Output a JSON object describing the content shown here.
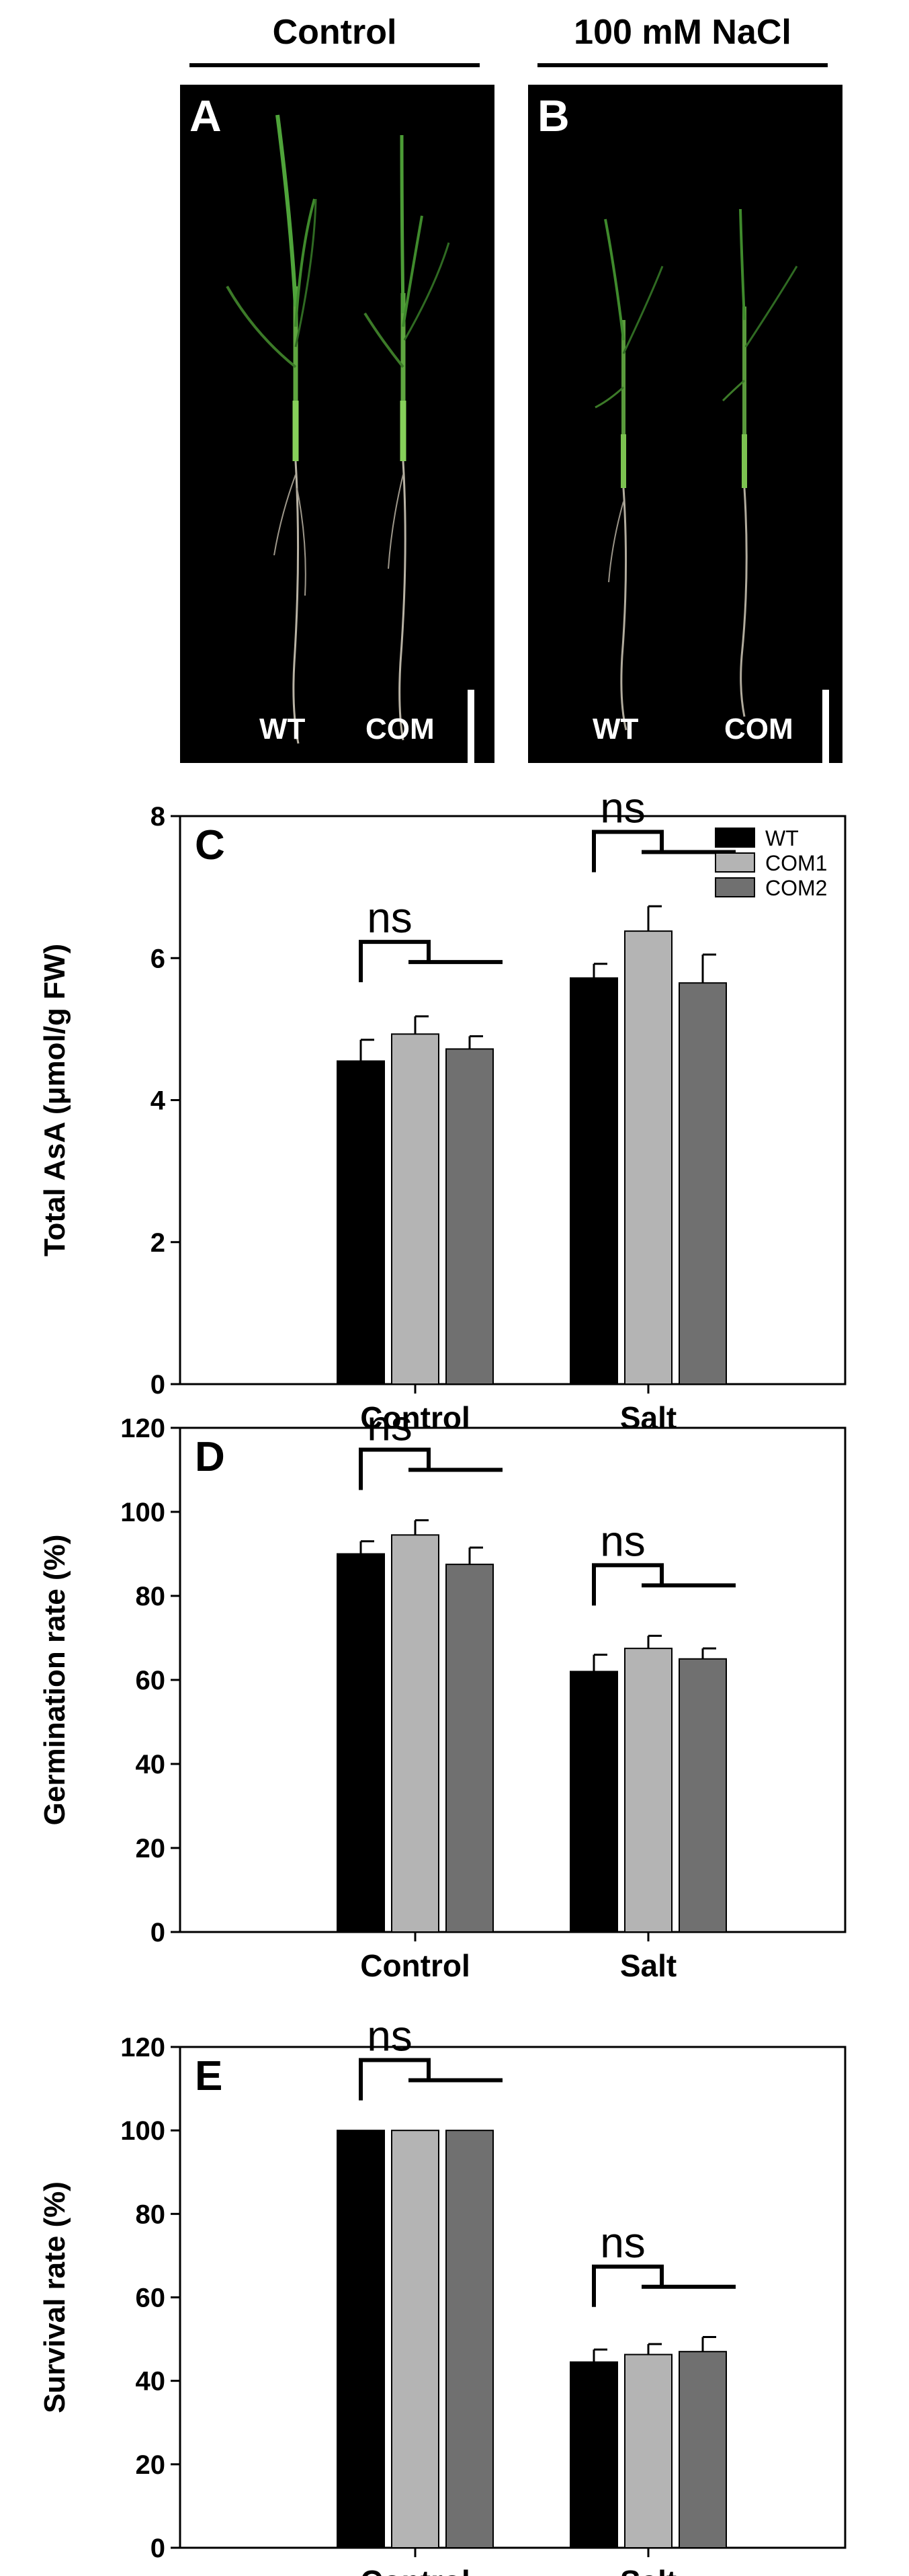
{
  "header": {
    "control_label": "Control",
    "salt_label": "100 mM NaCl"
  },
  "photos": [
    {
      "panel": "A",
      "genotypes": [
        "WT",
        "COM"
      ]
    },
    {
      "panel": "B",
      "genotypes": [
        "WT",
        "COM"
      ]
    }
  ],
  "colors": {
    "WT": "#000000",
    "COM1": "#b4b4b4",
    "COM2": "#707070"
  },
  "chart_data": [
    {
      "type": "bar",
      "panel": "C",
      "categories": [
        "Control",
        "Salt"
      ],
      "series": [
        {
          "name": "WT",
          "values": [
            4.55,
            5.72
          ],
          "errors": [
            0.3,
            0.2
          ]
        },
        {
          "name": "COM1",
          "values": [
            4.93,
            6.38
          ],
          "errors": [
            0.25,
            0.35
          ]
        },
        {
          "name": "COM2",
          "values": [
            4.72,
            5.65
          ],
          "errors": [
            0.18,
            0.4
          ]
        }
      ],
      "annotations": [
        "ns",
        "ns"
      ],
      "ylabel": "Total AsA (μmol/g FW)",
      "xlabel": "",
      "ylim": [
        0,
        8
      ],
      "yticks": [
        0,
        2,
        4,
        6,
        8
      ],
      "legend": "top-right",
      "grid": false
    },
    {
      "type": "bar",
      "panel": "D",
      "categories": [
        "Control",
        "Salt"
      ],
      "series": [
        {
          "name": "WT",
          "values": [
            90,
            62
          ],
          "errors": [
            3,
            4
          ]
        },
        {
          "name": "COM1",
          "values": [
            94.5,
            67.5
          ],
          "errors": [
            3.5,
            3
          ]
        },
        {
          "name": "COM2",
          "values": [
            87.5,
            65
          ],
          "errors": [
            4,
            2.5
          ]
        }
      ],
      "annotations": [
        "ns",
        "ns"
      ],
      "ylabel": "Germination rate (%)",
      "xlabel": "",
      "ylim": [
        0,
        120
      ],
      "yticks": [
        0,
        20,
        40,
        60,
        80,
        100,
        120
      ],
      "grid": false
    },
    {
      "type": "bar",
      "panel": "E",
      "categories": [
        "Control",
        "Salt"
      ],
      "series": [
        {
          "name": "WT",
          "values": [
            100,
            44.5
          ],
          "errors": [
            0,
            3
          ]
        },
        {
          "name": "COM1",
          "values": [
            100,
            46.3
          ],
          "errors": [
            0,
            2.5
          ]
        },
        {
          "name": "COM2",
          "values": [
            100,
            47
          ],
          "errors": [
            0,
            3.5
          ]
        }
      ],
      "annotations": [
        "ns",
        "ns"
      ],
      "ylabel": "Survival rate (%)",
      "xlabel": "",
      "ylim": [
        0,
        120
      ],
      "yticks": [
        0,
        20,
        40,
        60,
        80,
        100,
        120
      ],
      "grid": false
    }
  ]
}
